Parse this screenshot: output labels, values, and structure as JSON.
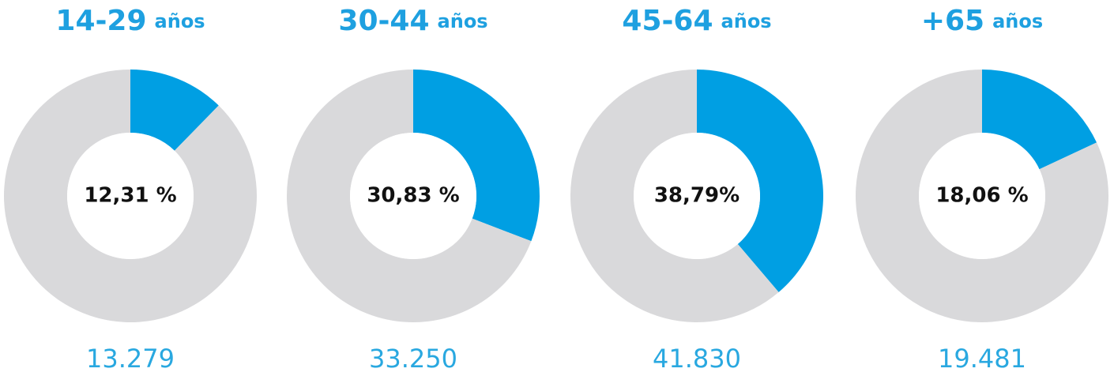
{
  "chart_data": [
    {
      "type": "donut",
      "title": "14-29",
      "subtitle": "años",
      "values": [
        12.31,
        87.69
      ],
      "value_labels": [
        "12,31 %",
        null
      ],
      "colors": [
        "#009fe3",
        "#d9d9db"
      ],
      "annotation": "13.279"
    },
    {
      "type": "donut",
      "title": "30-44",
      "subtitle": "años",
      "values": [
        30.83,
        69.17
      ],
      "value_labels": [
        "30,83 %",
        null
      ],
      "colors": [
        "#009fe3",
        "#d9d9db"
      ],
      "annotation": "33.250"
    },
    {
      "type": "donut",
      "title": "45-64",
      "subtitle": "años",
      "values": [
        38.79,
        61.21
      ],
      "value_labels": [
        "38,79%",
        null
      ],
      "colors": [
        "#009fe3",
        "#d9d9db"
      ],
      "annotation": "41.830"
    },
    {
      "type": "donut",
      "title": "+65",
      "subtitle": "años",
      "values": [
        18.06,
        81.94
      ],
      "value_labels": [
        "18,06 %",
        null
      ],
      "colors": [
        "#009fe3",
        "#d9d9db"
      ],
      "annotation": "19.481"
    }
  ]
}
